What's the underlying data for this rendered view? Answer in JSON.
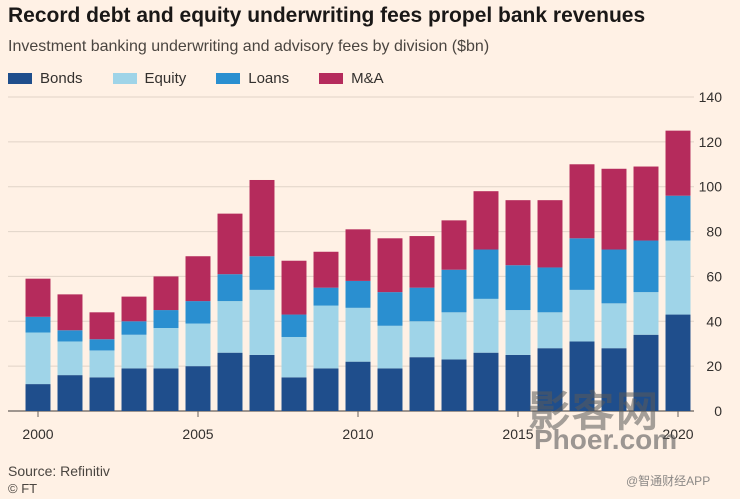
{
  "chart_data": {
    "type": "bar",
    "stacked": true,
    "title": "Record debt and equity underwriting fees propel bank revenues",
    "subtitle": "Investment banking underwriting and advisory fees by division ($bn)",
    "xlabel": "",
    "ylabel": "",
    "ylim": [
      0,
      140
    ],
    "y_ticks": [
      0,
      20,
      40,
      60,
      80,
      100,
      120,
      140
    ],
    "y_axis_side": "right",
    "grid": true,
    "legend_position": "top-left",
    "categories": [
      "2000",
      "2001",
      "2002",
      "2003",
      "2004",
      "2005",
      "2006",
      "2007",
      "2008",
      "2009",
      "2010",
      "2011",
      "2012",
      "2013",
      "2014",
      "2015",
      "2016",
      "2017",
      "2018",
      "2019",
      "2020"
    ],
    "x_tick_labels": [
      "2000",
      "",
      "",
      "",
      "",
      "2005",
      "",
      "",
      "",
      "",
      "2010",
      "",
      "",
      "",
      "",
      "2015",
      "",
      "",
      "",
      "",
      "2020"
    ],
    "series": [
      {
        "name": "Bonds",
        "color": "#1f4e8c",
        "values": [
          12,
          16,
          15,
          19,
          19,
          20,
          26,
          25,
          15,
          19,
          22,
          19,
          24,
          23,
          26,
          25,
          28,
          31,
          28,
          34,
          43
        ]
      },
      {
        "name": "Equity",
        "color": "#9fd4e8",
        "values": [
          23,
          15,
          12,
          15,
          18,
          19,
          23,
          29,
          18,
          28,
          24,
          19,
          16,
          21,
          24,
          20,
          16,
          23,
          20,
          19,
          33
        ]
      },
      {
        "name": "Loans",
        "color": "#2a8fd0",
        "values": [
          7,
          5,
          5,
          6,
          8,
          10,
          12,
          15,
          10,
          8,
          12,
          15,
          15,
          19,
          22,
          20,
          20,
          23,
          24,
          23,
          20
        ]
      },
      {
        "name": "M&A",
        "color": "#b52b5c",
        "values": [
          17,
          16,
          12,
          11,
          15,
          20,
          27,
          34,
          24,
          16,
          23,
          24,
          23,
          22,
          26,
          29,
          30,
          33,
          36,
          33,
          29
        ]
      }
    ]
  },
  "source": "Source: Refinitiv",
  "credit": "© FT",
  "watermark": {
    "cn": "影客网",
    "url": "Phoer.com",
    "app": "@智通财经APP"
  }
}
